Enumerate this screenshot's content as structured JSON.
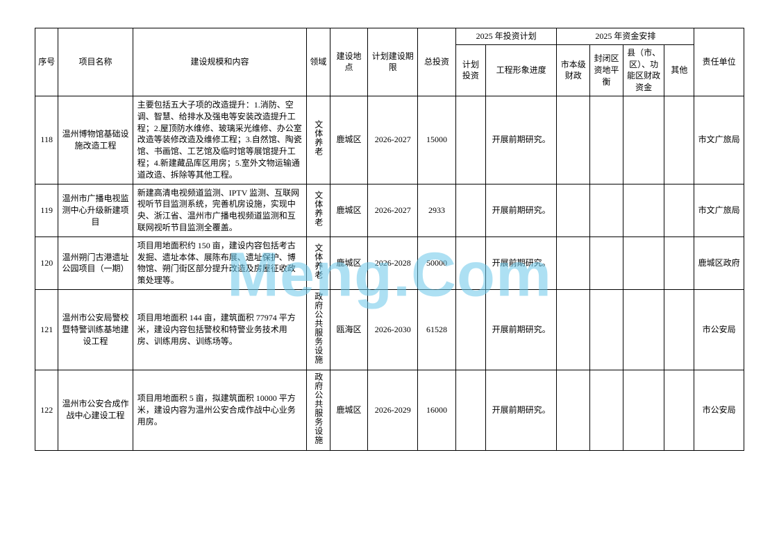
{
  "watermark": "Meng.Com",
  "header": {
    "seq": "序号",
    "name": "项目名称",
    "content": "建设规模和内容",
    "domain": "领域",
    "location": "建设地点",
    "period": "计划建设期限",
    "totalInvest": "总投资",
    "plan2025": "2025 年投资计划",
    "planInvest": "计划投资",
    "progress": "工程形象进度",
    "fund2025": "2025 年资金安排",
    "cityFinance": "市本级财政",
    "closedBalance": "封闭区资地平衡",
    "countyFinance": "县（市、区）、功能区财政资金",
    "other": "其他",
    "responsible": "责任单位"
  },
  "rows": [
    {
      "seq": "118",
      "name": "温州博物馆基础设施改造工程",
      "content": "主要包括五大子项的改造提升：1.消防、空调、智慧、给排水及强电等安装改造提升工程；2.屋顶防水维修、玻璃采光维修、办公室改造等装修改造及维修工程；3.自然馆、陶瓷馆、书画馆、工艺馆及临时馆等展馆提升工程；4.新建藏品库区用房；5.室外文物运输通道改造、拆除等其他工程。",
      "domain": "文体养老",
      "location": "鹿城区",
      "period": "2026-2027",
      "totalInvest": "15000",
      "planInvest": "",
      "progress": "开展前期研究。",
      "cityFinance": "",
      "closedBalance": "",
      "countyFinance": "",
      "other": "",
      "responsible": "市文广旅局"
    },
    {
      "seq": "119",
      "name": "温州市广播电视监测中心升级新建项目",
      "content": "新建高清电视频道监测、IPTV 监测、互联网视听节目监测系统，完善机房设施，实现中央、浙江省、温州市广播电视频道监测和互联网视听节目监测全覆盖。",
      "domain": "文体养老",
      "location": "鹿城区",
      "period": "2026-2027",
      "totalInvest": "2933",
      "planInvest": "",
      "progress": "开展前期研究。",
      "cityFinance": "",
      "closedBalance": "",
      "countyFinance": "",
      "other": "",
      "responsible": "市文广旅局"
    },
    {
      "seq": "120",
      "name": "温州朔门古港遗址公园项目（一期）",
      "content": "项目用地面积约 150 亩，建设内容包括考古发掘、遗址本体、展陈布展、遗址保护、博物馆、朔门街区部分提升改造及房屋征收政策处理等。",
      "domain": "文体养老",
      "location": "鹿城区",
      "period": "2026-2028",
      "totalInvest": "50000",
      "planInvest": "",
      "progress": "开展前期研究。",
      "cityFinance": "",
      "closedBalance": "",
      "countyFinance": "",
      "other": "",
      "responsible": "鹿城区政府"
    },
    {
      "seq": "121",
      "name": "温州市公安局警校暨特警训练基地建设工程",
      "content": "项目用地面积 144 亩，建筑面积 77974 平方米，建设内容包括警校和特警业务技术用房、训练用房、训练场等。",
      "domain": "政府公共服务设施",
      "location": "瓯海区",
      "period": "2026-2030",
      "totalInvest": "61528",
      "planInvest": "",
      "progress": "开展前期研究。",
      "cityFinance": "",
      "closedBalance": "",
      "countyFinance": "",
      "other": "",
      "responsible": "市公安局"
    },
    {
      "seq": "122",
      "name": "温州市公安合成作战中心建设工程",
      "content": "项目用地面积 5 亩，拟建筑面积 10000 平方米，建设内容为温州公安合成作战中心业务用房。",
      "domain": "政府公共服务设施",
      "location": "鹿城区",
      "period": "2026-2029",
      "totalInvest": "16000",
      "planInvest": "",
      "progress": "开展前期研究。",
      "cityFinance": "",
      "closedBalance": "",
      "countyFinance": "",
      "other": "",
      "responsible": "市公安局"
    }
  ]
}
